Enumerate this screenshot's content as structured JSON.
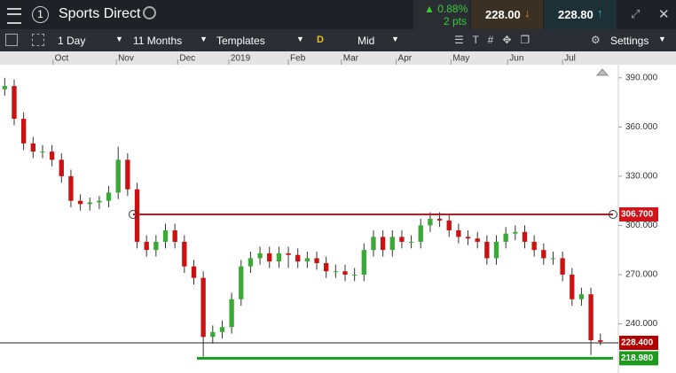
{
  "header": {
    "id": "1",
    "instrument": "Sports Direct",
    "change_pct": "0.88%",
    "change_pts": "2 pts",
    "sell": "228.00",
    "buy": "228.80"
  },
  "toolbar": {
    "interval": "1 Day",
    "range": "11 Months",
    "templates": "Templates",
    "d": "D",
    "price_type": "Mid",
    "settings": "Settings"
  },
  "chart_data": {
    "type": "candlestick",
    "open": [
      383,
      385,
      365,
      350,
      345,
      345,
      340,
      330,
      315,
      313,
      314,
      315,
      320,
      340,
      322,
      290,
      285,
      290,
      297,
      290,
      275,
      268,
      232,
      235,
      238,
      255,
      275,
      280,
      283,
      278,
      283,
      282,
      278,
      280,
      277,
      272,
      272,
      270,
      270,
      285,
      293,
      285,
      293,
      290,
      290,
      300,
      304,
      303,
      297,
      293,
      292,
      290,
      280,
      290,
      295,
      296,
      290,
      285,
      280,
      280,
      270,
      255,
      258,
      230
    ],
    "high": [
      390,
      389,
      369,
      354,
      349,
      349,
      344,
      334,
      319,
      317,
      318,
      324,
      348,
      344,
      326,
      294,
      294,
      301,
      301,
      294,
      279,
      272,
      239,
      242,
      259,
      279,
      284,
      287,
      287,
      287,
      287,
      286,
      284,
      284,
      281,
      276,
      276,
      274,
      289,
      297,
      297,
      297,
      297,
      294,
      304,
      308,
      308,
      307,
      301,
      297,
      296,
      294,
      294,
      299,
      300,
      300,
      294,
      289,
      284,
      284,
      274,
      262,
      262,
      234
    ],
    "low": [
      379,
      361,
      346,
      341,
      341,
      336,
      326,
      311,
      309,
      309,
      310,
      311,
      316,
      318,
      286,
      281,
      281,
      286,
      286,
      271,
      264,
      220,
      228,
      231,
      234,
      251,
      271,
      276,
      274,
      274,
      274,
      274,
      274,
      273,
      268,
      268,
      266,
      266,
      266,
      281,
      281,
      281,
      286,
      286,
      286,
      296,
      299,
      293,
      289,
      288,
      286,
      276,
      276,
      286,
      291,
      286,
      281,
      276,
      276,
      266,
      251,
      251,
      221,
      227
    ],
    "close": [
      385,
      365,
      350,
      345,
      345,
      340,
      330,
      315,
      313,
      314,
      315,
      320,
      340,
      322,
      290,
      285,
      290,
      297,
      290,
      275,
      268,
      232,
      235,
      238,
      255,
      275,
      280,
      283,
      278,
      283,
      282,
      278,
      280,
      277,
      272,
      272,
      270,
      270,
      285,
      293,
      285,
      293,
      290,
      290,
      300,
      304,
      303,
      297,
      293,
      292,
      290,
      280,
      290,
      295,
      296,
      290,
      285,
      280,
      280,
      270,
      255,
      258,
      230,
      229
    ],
    "up_color": "#3aa935",
    "down_color": "#cc1111",
    "xlim": [
      -0.5,
      64.9
    ],
    "xticks": [
      {
        "value": 5.1,
        "label": "Oct"
      },
      {
        "value": 11.8,
        "label": "Nov"
      },
      {
        "value": 18.3,
        "label": "Dec"
      },
      {
        "value": 23.7,
        "label": "2019"
      },
      {
        "value": 30,
        "label": "Feb"
      },
      {
        "value": 35.6,
        "label": "Mar"
      },
      {
        "value": 41.4,
        "label": "Apr"
      },
      {
        "value": 47.2,
        "label": "May"
      },
      {
        "value": 53.2,
        "label": "Jun"
      },
      {
        "value": 59,
        "label": "Jul"
      }
    ],
    "ylim": [
      210,
      398
    ],
    "yticks": [
      {
        "value": 240,
        "label": "240.000"
      },
      {
        "value": 270,
        "label": "270.000"
      },
      {
        "value": 300,
        "label": "300.000"
      },
      {
        "value": 330,
        "label": "330.000"
      },
      {
        "value": 360,
        "label": "360.000"
      },
      {
        "value": 390,
        "label": "390.000"
      }
    ],
    "lines": [
      {
        "value": 306.7,
        "label": "306.700",
        "color": "#d0141b"
      },
      {
        "value": 218.98,
        "label": "218.980",
        "color": "#1e9a1e"
      },
      {
        "value": 228.4,
        "label": "228.400",
        "color": "#b00000"
      }
    ]
  }
}
